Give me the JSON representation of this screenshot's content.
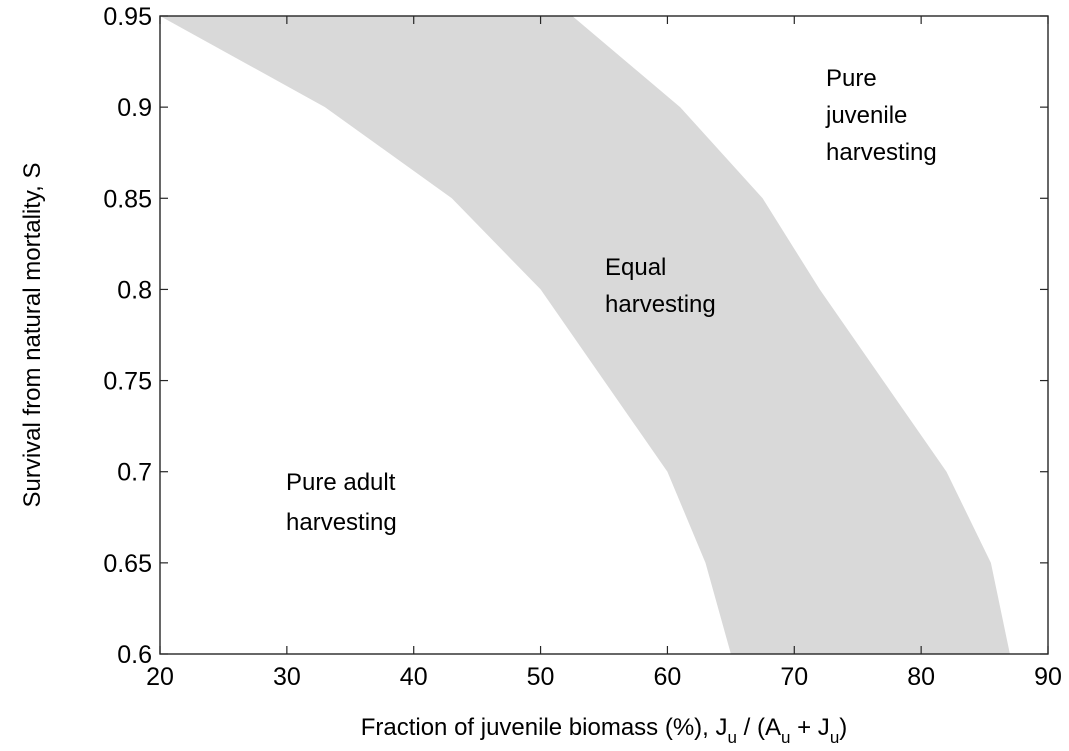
{
  "chart_data": {
    "type": "area",
    "xlabel": "Fraction of juvenile biomass (%), J_u / (A_u + J_u)",
    "ylabel": "Survival from natural mortality, S",
    "xlim": [
      20,
      90
    ],
    "ylim": [
      0.6,
      0.95
    ],
    "xticks": [
      20,
      30,
      40,
      50,
      60,
      70,
      80,
      90
    ],
    "yticks": [
      0.6,
      0.65,
      0.7,
      0.75,
      0.8,
      0.85,
      0.9,
      0.95
    ],
    "ytick_labels": [
      "0.6",
      "0.65",
      "0.7",
      "0.75",
      "0.8",
      "0.85",
      "0.9",
      "0.95"
    ],
    "grid": false,
    "fill_color": "#d9d9d9",
    "series": [
      {
        "role": "lower_boundary",
        "points": [
          [
            20,
            0.95
          ],
          [
            33,
            0.9
          ],
          [
            43,
            0.85
          ],
          [
            50,
            0.8
          ],
          [
            55,
            0.75
          ],
          [
            60,
            0.7
          ],
          [
            63,
            0.65
          ],
          [
            65,
            0.6
          ]
        ]
      },
      {
        "role": "upper_boundary",
        "points": [
          [
            52.5,
            0.95
          ],
          [
            61,
            0.9
          ],
          [
            67.5,
            0.85
          ],
          [
            72,
            0.8
          ],
          [
            77,
            0.75
          ],
          [
            82,
            0.7
          ],
          [
            85.5,
            0.65
          ],
          [
            87,
            0.6
          ]
        ]
      }
    ],
    "regions": [
      {
        "lines": [
          "Pure",
          "juvenile",
          "harvesting"
        ]
      },
      {
        "lines": [
          "Equal",
          "harvesting"
        ]
      },
      {
        "lines": [
          "Pure adult",
          "harvesting"
        ]
      }
    ]
  }
}
